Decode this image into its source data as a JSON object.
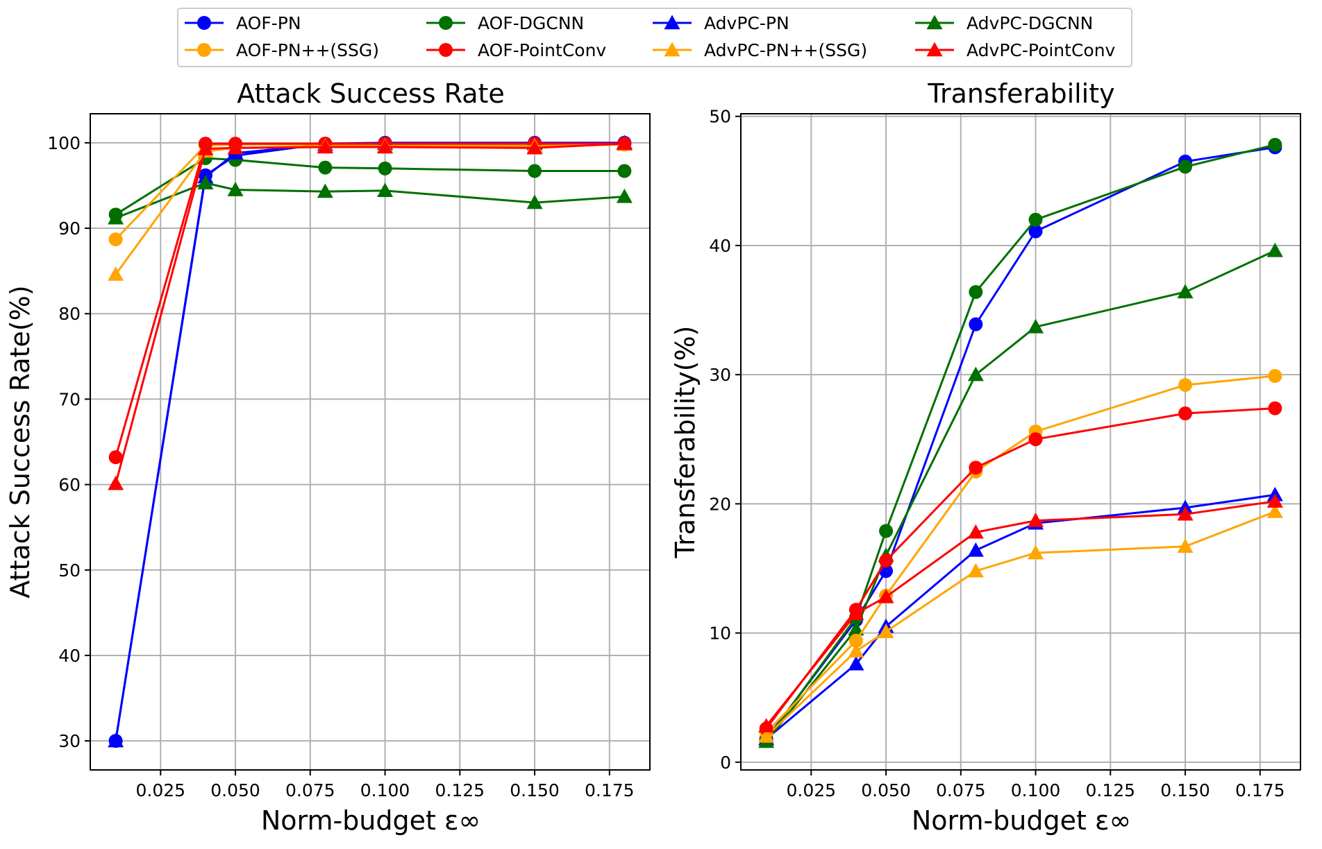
{
  "legend": [
    {
      "label": "AOF-PN",
      "color": "#0000ff",
      "marker": "circle"
    },
    {
      "label": "AOF-DGCNN",
      "color": "#007000",
      "marker": "circle"
    },
    {
      "label": "AdvPC-PN",
      "color": "#0000ff",
      "marker": "triangle"
    },
    {
      "label": "AdvPC-DGCNN",
      "color": "#007000",
      "marker": "triangle"
    },
    {
      "label": "AOF-PN++(SSG)",
      "color": "#ffa500",
      "marker": "circle"
    },
    {
      "label": "AOF-PointConv",
      "color": "#ff0000",
      "marker": "circle"
    },
    {
      "label": "AdvPC-PN++(SSG)",
      "color": "#ffa500",
      "marker": "triangle"
    },
    {
      "label": "AdvPC-PointConv",
      "color": "#ff0000",
      "marker": "triangle"
    }
  ],
  "chart_data": [
    {
      "type": "line",
      "title": "Attack Success Rate",
      "xlabel": "Norm-budget ε∞",
      "ylabel": "Attack Success Rate(%)",
      "x": [
        0.01,
        0.04,
        0.05,
        0.08,
        0.1,
        0.15,
        0.18
      ],
      "xlim": [
        0.0015,
        0.1885
      ],
      "ylim": [
        26.6,
        103.4
      ],
      "xticks": [
        0.025,
        0.05,
        0.075,
        0.1,
        0.125,
        0.15,
        0.175
      ],
      "xtick_labels": [
        "0.025",
        "0.050",
        "0.075",
        "0.100",
        "0.125",
        "0.150",
        "0.175"
      ],
      "yticks": [
        30,
        40,
        50,
        60,
        70,
        80,
        90,
        100
      ],
      "ytick_labels": [
        "30",
        "40",
        "50",
        "60",
        "70",
        "80",
        "90",
        "100"
      ],
      "grid": true,
      "series": [
        {
          "name": "AOF-PN",
          "color": "#0000ff",
          "marker": "circle",
          "values": [
            30.0,
            96.2,
            98.5,
            99.9,
            100.0,
            100.0,
            100.0
          ]
        },
        {
          "name": "AOF-DGCNN",
          "color": "#007000",
          "marker": "circle",
          "values": [
            91.6,
            98.2,
            98.0,
            97.1,
            97.0,
            96.7,
            96.7
          ]
        },
        {
          "name": "AdvPC-PN",
          "color": "#0000ff",
          "marker": "triangle",
          "values": [
            30.0,
            96.0,
            98.8,
            99.8,
            99.9,
            99.9,
            100.0
          ]
        },
        {
          "name": "AdvPC-DGCNN",
          "color": "#007000",
          "marker": "triangle",
          "values": [
            91.2,
            95.3,
            94.5,
            94.3,
            94.4,
            93.0,
            93.7
          ]
        },
        {
          "name": "AOF-PN++(SSG)",
          "color": "#ffa500",
          "marker": "circle",
          "values": [
            88.7,
            99.7,
            99.8,
            99.8,
            99.7,
            99.8,
            99.8
          ]
        },
        {
          "name": "AOF-PointConv",
          "color": "#ff0000",
          "marker": "circle",
          "values": [
            63.2,
            99.9,
            99.9,
            99.9,
            99.9,
            99.9,
            99.9
          ]
        },
        {
          "name": "AdvPC-PN++(SSG)",
          "color": "#ffa500",
          "marker": "triangle",
          "values": [
            84.6,
            99.0,
            99.4,
            99.6,
            99.6,
            99.6,
            99.8
          ]
        },
        {
          "name": "AdvPC-PointConv",
          "color": "#ff0000",
          "marker": "triangle",
          "values": [
            60.1,
            99.3,
            99.4,
            99.5,
            99.5,
            99.4,
            99.9
          ]
        }
      ]
    },
    {
      "type": "line",
      "title": "Transferability",
      "xlabel": "Norm-budget ε∞",
      "ylabel": "Transferability(%)",
      "x": [
        0.01,
        0.04,
        0.05,
        0.08,
        0.1,
        0.15,
        0.18
      ],
      "xlim": [
        0.0015,
        0.1885
      ],
      "ylim": [
        -0.6,
        50.2
      ],
      "xticks": [
        0.025,
        0.05,
        0.075,
        0.1,
        0.125,
        0.15,
        0.175
      ],
      "xtick_labels": [
        "0.025",
        "0.050",
        "0.075",
        "0.100",
        "0.125",
        "0.150",
        "0.175"
      ],
      "yticks": [
        0,
        10,
        20,
        30,
        40,
        50
      ],
      "ytick_labels": [
        "0",
        "10",
        "20",
        "30",
        "40",
        "50"
      ],
      "grid": true,
      "series": [
        {
          "name": "AOF-PN",
          "color": "#0000ff",
          "marker": "circle",
          "values": [
            1.8,
            11.0,
            14.8,
            33.9,
            41.1,
            46.5,
            47.6
          ]
        },
        {
          "name": "AOF-DGCNN",
          "color": "#007000",
          "marker": "circle",
          "values": [
            1.7,
            11.2,
            17.9,
            36.4,
            42.0,
            46.1,
            47.8
          ]
        },
        {
          "name": "AdvPC-PN",
          "color": "#0000ff",
          "marker": "triangle",
          "values": [
            1.8,
            7.6,
            10.5,
            16.4,
            18.5,
            19.7,
            20.7
          ]
        },
        {
          "name": "AdvPC-DGCNN",
          "color": "#007000",
          "marker": "triangle",
          "values": [
            1.6,
            10.3,
            16.0,
            30.0,
            33.7,
            36.4,
            39.6
          ]
        },
        {
          "name": "AOF-PN++(SSG)",
          "color": "#ffa500",
          "marker": "circle",
          "values": [
            2.3,
            9.4,
            12.9,
            22.5,
            25.6,
            29.2,
            29.9
          ]
        },
        {
          "name": "AOF-PointConv",
          "color": "#ff0000",
          "marker": "circle",
          "values": [
            2.6,
            11.8,
            15.6,
            22.8,
            25.0,
            27.0,
            27.4
          ]
        },
        {
          "name": "AdvPC-PN++(SSG)",
          "color": "#ffa500",
          "marker": "triangle",
          "values": [
            2.0,
            8.6,
            10.1,
            14.8,
            16.2,
            16.7,
            19.4
          ]
        },
        {
          "name": "AdvPC-PointConv",
          "color": "#ff0000",
          "marker": "triangle",
          "values": [
            2.8,
            11.5,
            12.8,
            17.8,
            18.7,
            19.2,
            20.2
          ]
        }
      ]
    }
  ]
}
